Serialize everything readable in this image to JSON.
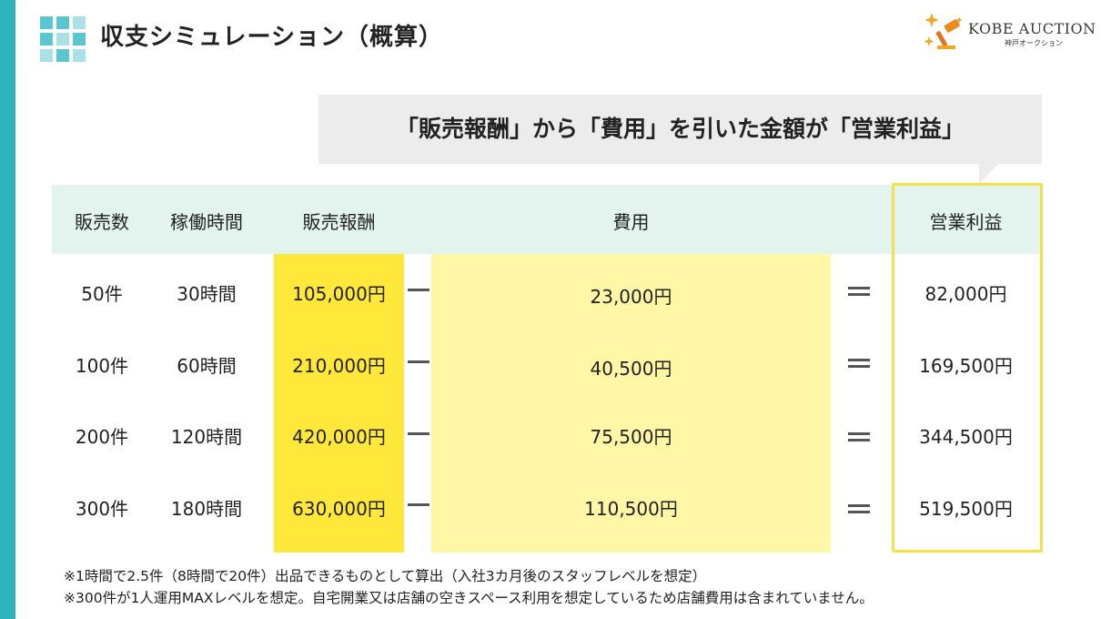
{
  "header": {
    "title": "収支シミュレーション（概算）",
    "logo_text": "KOBE AUCTION",
    "logo_subtext": "神戸オークション"
  },
  "callout": {
    "text": "「販売報酬」から「費用」を引いた金額が「営業利益」"
  },
  "table": {
    "columns": [
      "販売数",
      "稼働時間",
      "販売報酬",
      "費用",
      "営業利益"
    ],
    "rows": [
      {
        "count": "50件",
        "hours": "30時間",
        "reward": "105,000円",
        "cost": "23,000円",
        "profit": "82,000円"
      },
      {
        "count": "100件",
        "hours": "60時間",
        "reward": "210,000円",
        "cost": "40,500円",
        "profit": "169,500円"
      },
      {
        "count": "200件",
        "hours": "120時間",
        "reward": "420,000円",
        "cost": "75,500円",
        "profit": "344,500円"
      },
      {
        "count": "300件",
        "hours": "180時間",
        "reward": "630,000円",
        "cost": "110,500円",
        "profit": "519,500円"
      }
    ]
  },
  "notes": [
    "※1時間で2.5件（8時間で20件）出品できるものとして算出（入社3カ月後のスタッフレベルを想定）",
    "※300件が1人運用MAXレベルを想定。自宅開業又は店舗の空きスペース利用を想定しているため店舗費用は含まれていません。"
  ],
  "colors": {
    "accent_bar": "#2fb3bf",
    "header_band": "#e3f4ef",
    "reward_column": "#ffe83a",
    "cost_column": "#fff6a6",
    "profit_frame": "#f4e04a"
  }
}
